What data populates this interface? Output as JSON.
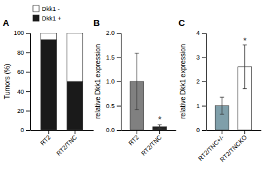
{
  "chart_data": [
    {
      "type": "bar",
      "title": "A",
      "stacked": true,
      "legend": "upper left",
      "categories": [
        "RT2",
        "RT2/TNC"
      ],
      "series": [
        {
          "name": "Dkk1 +",
          "color": "#1a1a1a",
          "values": [
            93,
            50
          ]
        },
        {
          "name": "Dkk1 -",
          "color": "#ffffff",
          "values": [
            7,
            50
          ]
        }
      ],
      "y_label": "Tumors (%)",
      "ylim": [
        0,
        100
      ],
      "yticks": [
        0,
        20,
        40,
        60,
        80,
        100
      ]
    },
    {
      "type": "bar",
      "title": "B",
      "categories": [
        "RT2",
        "RT2/TNC"
      ],
      "values": [
        1.0,
        0.07
      ],
      "errors": [
        0.58,
        0.04
      ],
      "colors": [
        "#808080",
        "#222222"
      ],
      "y_label": "relative Dkk1 expression",
      "ylim": [
        0,
        2.0
      ],
      "yticks": [
        {
          "value": 0,
          "label": "0.0"
        },
        0.5,
        {
          "value": 1,
          "label": "1.0"
        },
        1.5,
        {
          "value": 2,
          "label": "2.0"
        }
      ],
      "annotations": [
        {
          "text": "*",
          "x": "RT2/TNC",
          "y": 0.15
        }
      ]
    },
    {
      "type": "bar",
      "title": "C",
      "categories": [
        "RT2/TNC+/-",
        "RT2/TNCKO"
      ],
      "values": [
        1.0,
        2.6
      ],
      "errors": [
        0.35,
        0.9
      ],
      "colors": [
        "#7f9faa",
        "#ffffff"
      ],
      "y_label": "relative Dkk1 expression",
      "ylim": [
        0,
        4.0
      ],
      "yticks": [
        0,
        1,
        2,
        3,
        4
      ],
      "annotations": [
        {
          "text": "*",
          "x": "RT2/TNCKO",
          "y": 3.55
        }
      ]
    }
  ]
}
